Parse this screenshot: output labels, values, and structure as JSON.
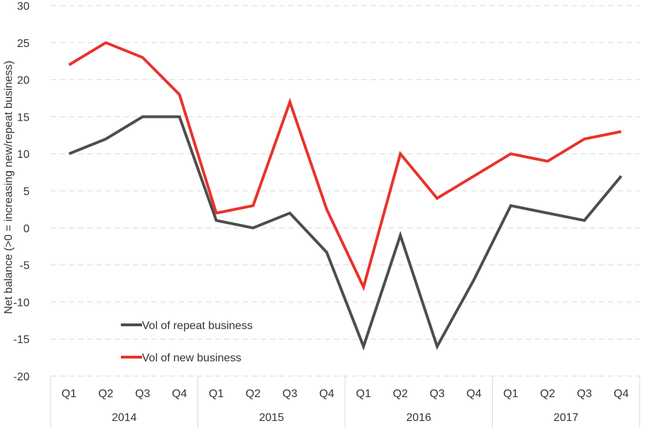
{
  "chart_data": {
    "type": "line",
    "ylabel": "Net balance (>0 = increasing new/repeat business)",
    "ylim": [
      -20,
      30
    ],
    "yticks": [
      -20,
      -15,
      -10,
      -5,
      0,
      5,
      10,
      15,
      20,
      25,
      30
    ],
    "grid": true,
    "legend_position": "bottom-left",
    "categories": [
      "Q1",
      "Q2",
      "Q3",
      "Q4",
      "Q1",
      "Q2",
      "Q3",
      "Q4",
      "Q1",
      "Q2",
      "Q3",
      "Q4",
      "Q1",
      "Q2",
      "Q3",
      "Q4"
    ],
    "groups": [
      {
        "label": "2014",
        "count": 4
      },
      {
        "label": "2015",
        "count": 4
      },
      {
        "label": "2016",
        "count": 4
      },
      {
        "label": "2017",
        "count": 4
      }
    ],
    "series": [
      {
        "name": "Vol of repeat business",
        "color": "#4d4d4d",
        "values": [
          10,
          12,
          15,
          15,
          1,
          0,
          2,
          -3.3,
          -16,
          -1,
          -16,
          -7,
          3,
          2,
          1,
          7
        ]
      },
      {
        "name": "Vol of new business",
        "color": "#e8332a",
        "values": [
          22,
          25,
          23,
          18,
          2,
          3,
          17,
          2.5,
          -8,
          10,
          4,
          7,
          10,
          9,
          12,
          13
        ]
      }
    ]
  }
}
